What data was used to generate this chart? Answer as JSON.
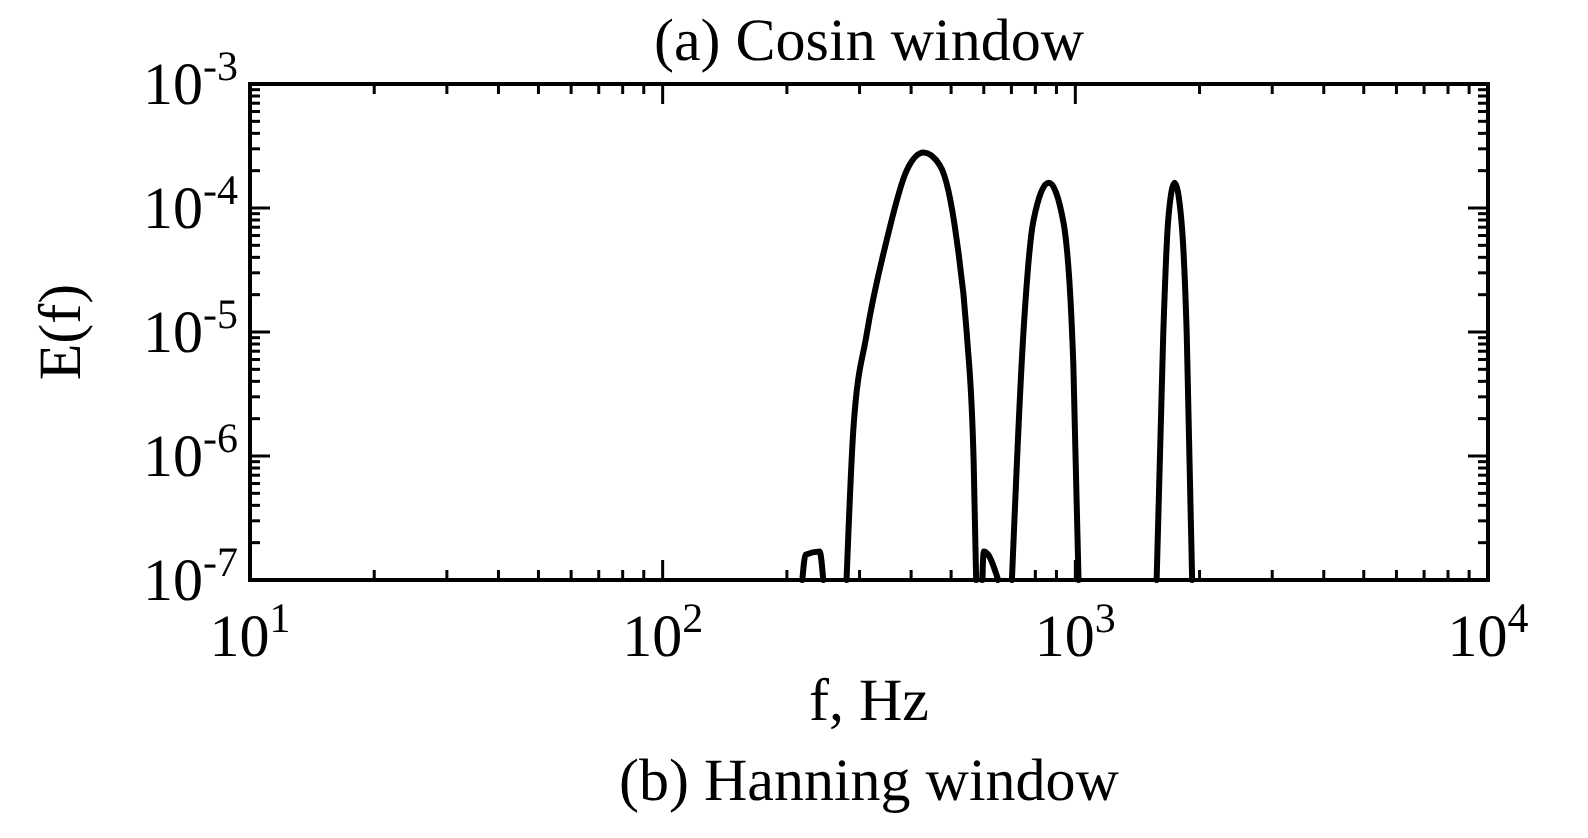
{
  "chart_data": {
    "type": "line",
    "title": "(a) Cosin window",
    "xlabel": "f, Hz",
    "ylabel": "E(f)",
    "annotations": [
      "(b) Hanning window"
    ],
    "log": "xy",
    "grid": false,
    "marker": "none",
    "line_style": "solid",
    "xlim": [
      10,
      10000
    ],
    "ylim": [
      1e-07,
      0.001
    ],
    "xticks": [
      {
        "value": 10,
        "label": "10$^{1}$"
      },
      {
        "value": 20,
        "label": null
      },
      {
        "value": 30,
        "label": null
      },
      {
        "value": 40,
        "label": null
      },
      {
        "value": 50,
        "label": null
      },
      {
        "value": 60,
        "label": null
      },
      {
        "value": 70,
        "label": null
      },
      {
        "value": 80,
        "label": null
      },
      {
        "value": 90,
        "label": null
      },
      {
        "value": 100,
        "label": "10$^{2}$"
      },
      {
        "value": 200,
        "label": null
      },
      {
        "value": 300,
        "label": null
      },
      {
        "value": 400,
        "label": null
      },
      {
        "value": 500,
        "label": null
      },
      {
        "value": 600,
        "label": null
      },
      {
        "value": 700,
        "label": null
      },
      {
        "value": 800,
        "label": null
      },
      {
        "value": 900,
        "label": null
      },
      {
        "value": 1000,
        "label": "10$^{3}$"
      },
      {
        "value": 2000,
        "label": null
      },
      {
        "value": 3000,
        "label": null
      },
      {
        "value": 4000,
        "label": null
      },
      {
        "value": 5000,
        "label": null
      },
      {
        "value": 6000,
        "label": null
      },
      {
        "value": 7000,
        "label": null
      },
      {
        "value": 8000,
        "label": null
      },
      {
        "value": 9000,
        "label": null
      },
      {
        "value": 10000,
        "label": "10$^{4}$"
      }
    ],
    "yticks": [
      {
        "value": 1e-07,
        "label": "10$^{-7}$"
      },
      {
        "value": 2e-07,
        "label": null
      },
      {
        "value": 3e-07,
        "label": null
      },
      {
        "value": 4e-07,
        "label": null
      },
      {
        "value": 5e-07,
        "label": null
      },
      {
        "value": 6e-07,
        "label": null
      },
      {
        "value": 7e-07,
        "label": null
      },
      {
        "value": 8e-07,
        "label": null
      },
      {
        "value": 9e-07,
        "label": null
      },
      {
        "value": 1e-06,
        "label": "10$^{-6}$"
      },
      {
        "value": 2e-06,
        "label": null
      },
      {
        "value": 3e-06,
        "label": null
      },
      {
        "value": 4e-06,
        "label": null
      },
      {
        "value": 5e-06,
        "label": null
      },
      {
        "value": 6e-06,
        "label": null
      },
      {
        "value": 7e-06,
        "label": null
      },
      {
        "value": 8e-06,
        "label": null
      },
      {
        "value": 9e-06,
        "label": null
      },
      {
        "value": 1e-05,
        "label": "10$^{-5}$"
      },
      {
        "value": 2e-05,
        "label": null
      },
      {
        "value": 3e-05,
        "label": null
      },
      {
        "value": 4e-05,
        "label": null
      },
      {
        "value": 5e-05,
        "label": null
      },
      {
        "value": 6e-05,
        "label": null
      },
      {
        "value": 7e-05,
        "label": null
      },
      {
        "value": 8e-05,
        "label": null
      },
      {
        "value": 9e-05,
        "label": null
      },
      {
        "value": 0.0001,
        "label": "10$^{-4}$"
      },
      {
        "value": 0.0002,
        "label": null
      },
      {
        "value": 0.0003,
        "label": null
      },
      {
        "value": 0.0004,
        "label": null
      },
      {
        "value": 0.0005,
        "label": null
      },
      {
        "value": 0.0006,
        "label": null
      },
      {
        "value": 0.0007,
        "label": null
      },
      {
        "value": 0.0008,
        "label": null
      },
      {
        "value": 0.0009,
        "label": null
      },
      {
        "value": 0.001,
        "label": "10$^{-3}$"
      }
    ],
    "series": [
      {
        "color": "#000000",
        "x": [
          218,
          222,
          240,
          245,
          250,
          279,
          290,
          312,
          349,
          390,
          429,
          470,
          516,
          546,
          567,
          575,
          585,
          595,
          600,
          615,
          650,
          680,
          702,
          748,
          791,
          862,
          935,
          989,
          1018,
          1300,
          1574,
          1633,
          1678,
          1740,
          1808,
          1862,
          1919
        ],
        "values": [
          1e-07,
          1.6e-07,
          1.7e-07,
          1e-07,
          null,
          1e-07,
          1.7e-06,
          9.5e-06,
          5.5e-05,
          0.0002,
          0.00028,
          0.00022,
          5.5e-05,
          9.5e-06,
          9e-07,
          1e-07,
          null,
          1e-07,
          1.7e-07,
          1.6e-07,
          1e-07,
          null,
          1e-07,
          9.5e-06,
          7.8e-05,
          0.00016,
          7.8e-05,
          5.4e-06,
          1e-07,
          null,
          1e-07,
          9.5e-06,
          7.8e-05,
          0.00016,
          7.8e-05,
          9.5e-06,
          1e-07
        ]
      }
    ]
  }
}
